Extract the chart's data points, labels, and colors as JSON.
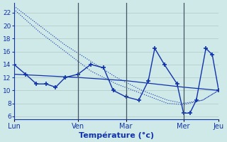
{
  "background_color": "#cfe8e8",
  "grid_color": "#b0c8c8",
  "line_color": "#1133aa",
  "sep_color": "#445566",
  "xlabel": "Température (°c)",
  "ylim": [
    5.5,
    23.5
  ],
  "yticks": [
    6,
    8,
    10,
    12,
    14,
    16,
    18,
    20,
    22
  ],
  "xlim": [
    0,
    320
  ],
  "day_positions": [
    0,
    100,
    175,
    265,
    320
  ],
  "day_labels": [
    "Lun",
    "Ven",
    "Mar",
    "Mer",
    "Jeu"
  ],
  "day_lines": [
    100,
    175,
    265
  ],
  "line_main_x": [
    0,
    18,
    35,
    50,
    65,
    80,
    100,
    120,
    140,
    155,
    175,
    195,
    210,
    220,
    235,
    255,
    265,
    275,
    285,
    300,
    310,
    320
  ],
  "line_main_y": [
    14,
    12.5,
    11,
    11,
    10.5,
    12,
    12.5,
    14,
    13.5,
    10,
    9,
    8.5,
    11.5,
    16.5,
    14,
    11,
    6.5,
    6.5,
    8.5,
    16.5,
    15.5,
    10
  ],
  "line_diag1_x": [
    0,
    40,
    80,
    120,
    160,
    200,
    240,
    265,
    295,
    320
  ],
  "line_diag1_y": [
    23,
    20,
    17,
    14.5,
    12,
    10,
    8.5,
    8,
    8.5,
    10
  ],
  "line_diag2_x": [
    0,
    40,
    80,
    120,
    160,
    200,
    240,
    265,
    295,
    320
  ],
  "line_diag2_y": [
    22.5,
    19,
    16,
    13,
    11,
    9.5,
    8,
    7.8,
    8.5,
    10
  ],
  "line_flat_x": [
    0,
    100,
    175,
    265,
    320
  ],
  "line_flat_y": [
    12.5,
    12,
    11.5,
    10.5,
    10
  ]
}
